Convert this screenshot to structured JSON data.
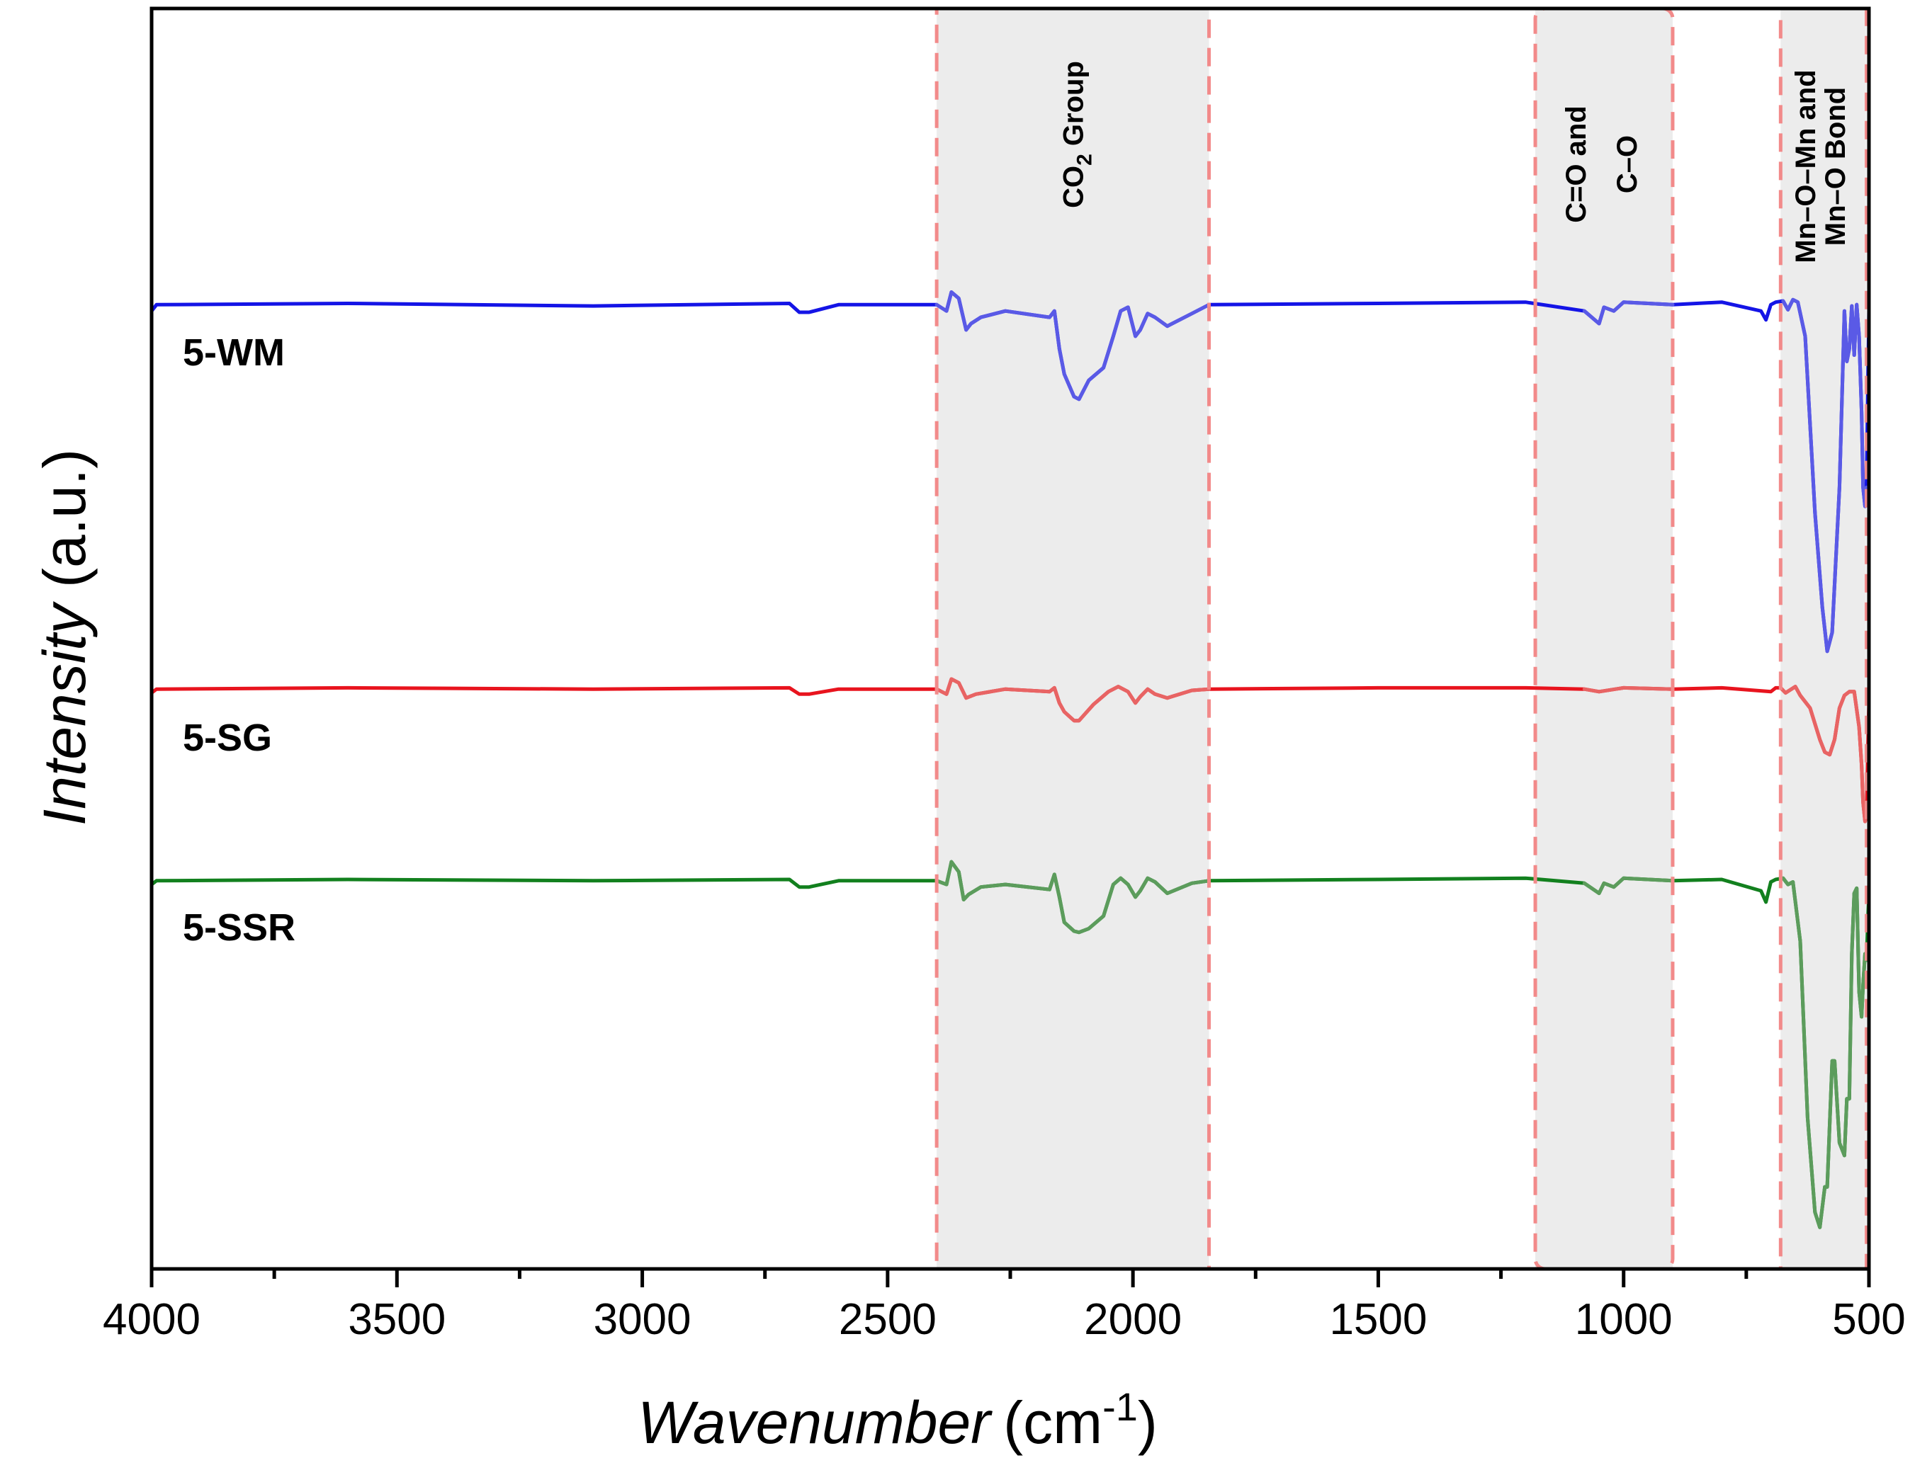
{
  "chart_data": {
    "type": "line",
    "title": "",
    "xlabel": "Wavenumber",
    "xlabel_unit_base": "(cm",
    "xlabel_unit_exp": "-1",
    "xlabel_unit_close": ")",
    "ylabel_italic": "Intensity",
    "ylabel_unit": " (a.u.)",
    "xlim": [
      4000,
      500
    ],
    "ylim": [
      0,
      100
    ],
    "xticks": [
      4000,
      3500,
      3000,
      2500,
      2000,
      1500,
      1000,
      500
    ],
    "xtick_labels": [
      "4000",
      "3500",
      "3000",
      "2500",
      "2000",
      "1500",
      "1000",
      "500"
    ],
    "minor_xticks": [
      3750,
      3250,
      2750,
      2250,
      1750,
      1250,
      750
    ],
    "regions": [
      {
        "name": "co2-region",
        "x_from": 2400,
        "x_to": 1845,
        "label_main": "CO",
        "label_sub": "2",
        "label_rest": " Group"
      },
      {
        "name": "co-region",
        "x_from": 1180,
        "x_to": 900,
        "label_line1": "C=O and",
        "label_line2": "C–O"
      },
      {
        "name": "mno-region",
        "x_from": 680,
        "x_to": 505,
        "label_line1": "Mn–O–Mn and",
        "label_line2": "Mn–O Bond"
      }
    ],
    "series": [
      {
        "name": "5-WM",
        "label": "5-WM",
        "color": "#1414e6",
        "overlay_color": "#5a5ae6",
        "baseline": 76.5,
        "x": [
          4000,
          3990,
          3600,
          3100,
          2700,
          2680,
          2660,
          2600,
          2400,
          2380,
          2370,
          2355,
          2340,
          2330,
          2310,
          2260,
          2170,
          2160,
          2150,
          2140,
          2120,
          2110,
          2090,
          2060,
          2040,
          2025,
          2010,
          1995,
          1985,
          1970,
          1955,
          1930,
          1880,
          1845,
          1500,
          1200,
          1080,
          1050,
          1040,
          1020,
          1000,
          900,
          800,
          720,
          710,
          700,
          690,
          675,
          665,
          655,
          645,
          630,
          610,
          595,
          585,
          575,
          560,
          550,
          545,
          540,
          535,
          530,
          525,
          520,
          515,
          512,
          508,
          505,
          500
        ],
        "values": [
          76.0,
          76.5,
          76.6,
          76.4,
          76.6,
          75.9,
          75.9,
          76.5,
          76.5,
          76.0,
          77.5,
          77.0,
          74.5,
          75.0,
          75.5,
          76.0,
          75.5,
          76.0,
          73.0,
          71.0,
          69.2,
          69.0,
          70.5,
          71.5,
          74.0,
          76.0,
          76.3,
          74.0,
          74.5,
          75.8,
          75.5,
          74.8,
          75.8,
          76.5,
          76.6,
          76.7,
          76.0,
          75.0,
          76.3,
          76.0,
          76.7,
          76.5,
          76.7,
          76.0,
          75.3,
          76.5,
          76.7,
          76.8,
          76.1,
          76.9,
          76.7,
          74.0,
          60.0,
          52.5,
          49.0,
          50.5,
          62.0,
          76.0,
          72.0,
          73.0,
          76.4,
          72.5,
          76.5,
          74.0,
          68.0,
          62.0,
          60.5,
          62.0,
          76.0
        ]
      },
      {
        "name": "5-SG",
        "label": "5-SG",
        "color": "#e8141e",
        "overlay_color": "#e86464",
        "baseline": 46.0,
        "x": [
          4000,
          3990,
          3600,
          3100,
          2700,
          2680,
          2660,
          2600,
          2400,
          2380,
          2370,
          2355,
          2340,
          2320,
          2260,
          2170,
          2160,
          2150,
          2140,
          2120,
          2110,
          2080,
          2050,
          2030,
          2010,
          1995,
          1985,
          1970,
          1955,
          1930,
          1880,
          1845,
          1500,
          1200,
          1080,
          1050,
          1000,
          900,
          800,
          700,
          690,
          680,
          670,
          650,
          640,
          620,
          600,
          590,
          580,
          570,
          560,
          550,
          540,
          530,
          520,
          515,
          512,
          508,
          505,
          500
        ],
        "values": [
          45.7,
          46.0,
          46.1,
          46.0,
          46.1,
          45.6,
          45.6,
          46.0,
          46.0,
          45.6,
          46.8,
          46.5,
          45.3,
          45.6,
          46.0,
          45.8,
          46.1,
          44.9,
          44.2,
          43.5,
          43.5,
          44.8,
          45.8,
          46.2,
          45.8,
          44.9,
          45.4,
          46.0,
          45.6,
          45.3,
          45.9,
          46.0,
          46.1,
          46.1,
          46.0,
          45.8,
          46.1,
          46.0,
          46.1,
          45.8,
          46.1,
          46.1,
          45.7,
          46.2,
          45.5,
          44.5,
          42.0,
          41.0,
          40.8,
          42.0,
          44.5,
          45.5,
          45.8,
          45.8,
          43.0,
          40.0,
          37.0,
          35.5,
          36.0,
          45.0
        ]
      },
      {
        "name": "5-SSR",
        "label": "5-SSR",
        "color": "#12801e",
        "overlay_color": "#5c9c5c",
        "baseline": 30.8,
        "x": [
          4000,
          3990,
          3600,
          3100,
          2700,
          2680,
          2660,
          2600,
          2400,
          2380,
          2370,
          2355,
          2345,
          2335,
          2310,
          2260,
          2170,
          2160,
          2150,
          2140,
          2120,
          2110,
          2090,
          2060,
          2040,
          2025,
          2010,
          1995,
          1985,
          1970,
          1955,
          1930,
          1880,
          1845,
          1500,
          1200,
          1080,
          1050,
          1040,
          1020,
          1000,
          900,
          800,
          720,
          710,
          700,
          690,
          675,
          665,
          655,
          640,
          625,
          610,
          600,
          590,
          585,
          575,
          570,
          560,
          550,
          545,
          540,
          535,
          530,
          525,
          520,
          515,
          512,
          508,
          505,
          500
        ],
        "values": [
          30.5,
          30.8,
          30.9,
          30.8,
          30.9,
          30.3,
          30.3,
          30.8,
          30.8,
          30.5,
          32.3,
          31.5,
          29.3,
          29.7,
          30.3,
          30.5,
          30.1,
          31.3,
          29.5,
          27.5,
          26.8,
          26.7,
          27.0,
          28.0,
          30.5,
          31.0,
          30.5,
          29.5,
          30.0,
          31.0,
          30.7,
          29.8,
          30.6,
          30.8,
          30.9,
          31.0,
          30.6,
          29.8,
          30.6,
          30.3,
          31.0,
          30.8,
          30.9,
          30.0,
          29.1,
          30.7,
          30.9,
          31.0,
          30.5,
          30.7,
          26.0,
          12.0,
          4.5,
          3.3,
          6.5,
          6.5,
          16.5,
          16.5,
          10.0,
          9.0,
          13.5,
          13.5,
          25.0,
          29.8,
          30.2,
          22.0,
          20.0,
          22.5,
          25.0,
          24.5,
          30.0
        ]
      }
    ]
  }
}
